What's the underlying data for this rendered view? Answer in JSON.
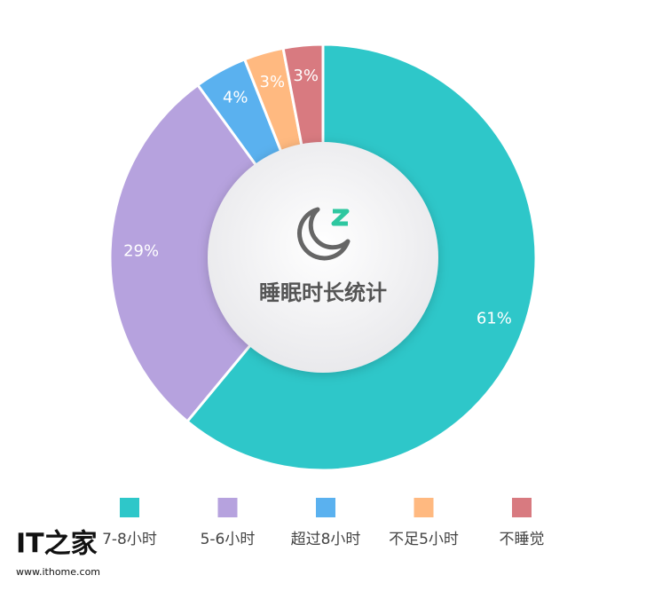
{
  "chart_data": {
    "type": "donut",
    "title": "睡眠时长统计",
    "categories": [
      "7-8小时",
      "5-6小时",
      "超过8小时",
      "不足5小时",
      "不睡觉"
    ],
    "values": [
      61,
      29,
      4,
      3,
      3
    ],
    "value_labels": [
      "61%",
      "29%",
      "4%",
      "3%",
      "3%"
    ],
    "colors": [
      "#2ec7c9",
      "#b6a2de",
      "#5ab1ef",
      "#ffb980",
      "#d87a80"
    ]
  },
  "watermark": {
    "logo": "IT之家",
    "url": "www.ithome.com"
  }
}
